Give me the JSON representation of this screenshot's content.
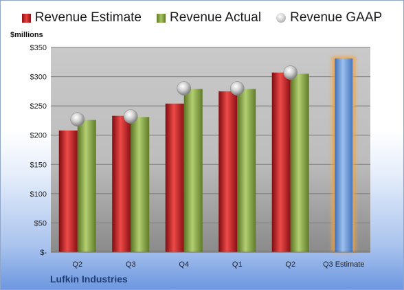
{
  "chart_data": {
    "type": "bar",
    "ylabel": "$millions",
    "ylim": [
      0,
      350
    ],
    "yticks": [
      0,
      50,
      100,
      150,
      200,
      250,
      300,
      350
    ],
    "ytick_labels": [
      "$-",
      "$50",
      "$100",
      "$150",
      "$200",
      "$250",
      "$300",
      "$350"
    ],
    "categories": [
      "Q2",
      "Q3",
      "Q4",
      "Q1",
      "Q2",
      "Q3 Estimate"
    ],
    "series": [
      {
        "name": "Revenue Estimate",
        "type": "bar",
        "values": [
          208,
          233,
          254,
          275,
          307,
          null
        ]
      },
      {
        "name": "Revenue Actual",
        "type": "bar",
        "values": [
          226,
          231,
          279,
          279,
          305,
          null
        ]
      },
      {
        "name": "Revenue GAAP",
        "type": "marker",
        "values": [
          227,
          232,
          280,
          280,
          307,
          null
        ]
      },
      {
        "name": "",
        "type": "bar-highlight",
        "values": [
          null,
          null,
          null,
          null,
          null,
          331
        ]
      }
    ],
    "grid": true,
    "legend_position": "top",
    "colors": {
      "estimate": "#d42a2e",
      "actual": "#86a94a",
      "gaap": "#bdbdbd",
      "forecast": "#6a98d6",
      "forecast_glow": "#f2a444"
    }
  },
  "footer": {
    "company": "Lufkin Industries"
  }
}
